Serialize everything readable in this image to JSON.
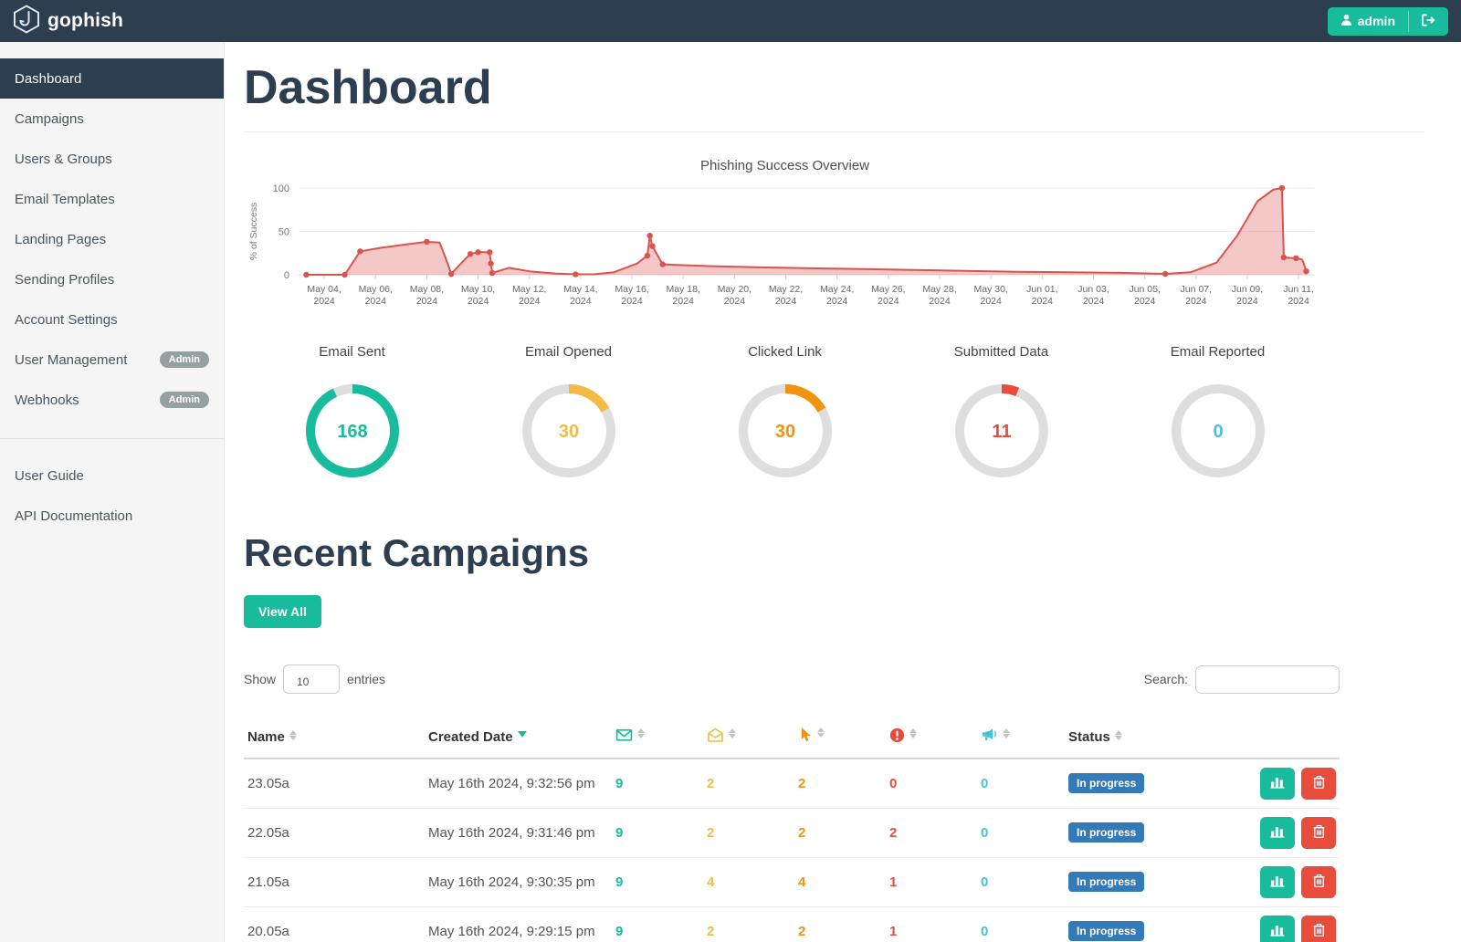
{
  "navbar": {
    "brand": "gophish",
    "user_label": "admin"
  },
  "sidebar": {
    "items": [
      {
        "label": "Dashboard",
        "active": true
      },
      {
        "label": "Campaigns"
      },
      {
        "label": "Users & Groups"
      },
      {
        "label": "Email Templates"
      },
      {
        "label": "Landing Pages"
      },
      {
        "label": "Sending Profiles"
      },
      {
        "label": "Account Settings"
      },
      {
        "label": "User Management",
        "badge": "Admin"
      },
      {
        "label": "Webhooks",
        "badge": "Admin"
      }
    ],
    "secondary_items": [
      {
        "label": "User Guide"
      },
      {
        "label": "API Documentation"
      }
    ]
  },
  "page": {
    "title": "Dashboard"
  },
  "chart_data": {
    "type": "area",
    "title": "Phishing Success Overview",
    "ylabel": "% of Success",
    "ylim": [
      0,
      100
    ],
    "yticks": [
      0,
      50,
      100
    ],
    "grid": "horizontal at 0/50/100",
    "legend_position": "none",
    "line_color": "#d9534f",
    "fill_color": "rgba(217,83,79,0.32)",
    "xlim_days": [
      0,
      39.6
    ],
    "xtick_days": [
      1,
      3,
      5,
      7,
      9,
      11,
      13,
      15,
      17,
      19,
      21,
      23,
      25,
      27,
      29,
      31,
      33,
      35,
      37,
      39
    ],
    "xtick_labels": [
      "May 04, 2024",
      "May 06, 2024",
      "May 08, 2024",
      "May 10, 2024",
      "May 12, 2024",
      "May 14, 2024",
      "May 16, 2024",
      "May 18, 2024",
      "May 20, 2024",
      "May 22, 2024",
      "May 24, 2024",
      "May 26, 2024",
      "May 28, 2024",
      "May 30, 2024",
      "Jun 01, 2024",
      "Jun 03, 2024",
      "Jun 05, 2024",
      "Jun 07, 2024",
      "Jun 09, 2024",
      "Jun 11, 2024"
    ],
    "points": [
      [
        0.3,
        0
      ],
      [
        1.8,
        0
      ],
      [
        2.4,
        27
      ],
      [
        3.2,
        31
      ],
      [
        4.2,
        35
      ],
      [
        5.0,
        38
      ],
      [
        5.5,
        37
      ],
      [
        5.75,
        18
      ],
      [
        5.95,
        1
      ],
      [
        6.3,
        12
      ],
      [
        6.7,
        24
      ],
      [
        7.0,
        26
      ],
      [
        7.45,
        26
      ],
      [
        7.5,
        13
      ],
      [
        7.55,
        2
      ],
      [
        8.2,
        8
      ],
      [
        9.0,
        4
      ],
      [
        10.0,
        1.5
      ],
      [
        10.8,
        0.5
      ],
      [
        11.5,
        0.5
      ],
      [
        12.3,
        3
      ],
      [
        13.2,
        13
      ],
      [
        13.6,
        22
      ],
      [
        13.7,
        45
      ],
      [
        13.8,
        33
      ],
      [
        14.2,
        12
      ],
      [
        15.0,
        11
      ],
      [
        16.0,
        10
      ],
      [
        18.0,
        8.5
      ],
      [
        20.0,
        7.5
      ],
      [
        22.0,
        6.5
      ],
      [
        24.0,
        5.5
      ],
      [
        26.0,
        4.5
      ],
      [
        28.0,
        3.5
      ],
      [
        30.0,
        2.8
      ],
      [
        32.0,
        2.2
      ],
      [
        33.8,
        1
      ],
      [
        34.8,
        3
      ],
      [
        35.8,
        14
      ],
      [
        36.6,
        45
      ],
      [
        37.4,
        85
      ],
      [
        38.0,
        98
      ],
      [
        38.35,
        100
      ],
      [
        38.42,
        20
      ],
      [
        38.9,
        19
      ],
      [
        39.1,
        18
      ],
      [
        39.15,
        17
      ],
      [
        39.3,
        4
      ]
    ],
    "markers": [
      [
        0.3,
        0
      ],
      [
        1.8,
        0
      ],
      [
        2.4,
        27
      ],
      [
        5.0,
        38
      ],
      [
        5.95,
        1
      ],
      [
        6.7,
        24
      ],
      [
        7.0,
        26
      ],
      [
        7.45,
        26
      ],
      [
        7.5,
        13
      ],
      [
        7.55,
        2
      ],
      [
        10.8,
        0.5
      ],
      [
        13.6,
        22
      ],
      [
        13.7,
        45
      ],
      [
        13.8,
        33
      ],
      [
        14.2,
        12
      ],
      [
        33.8,
        1
      ],
      [
        38.35,
        100
      ],
      [
        38.42,
        20
      ],
      [
        38.9,
        19
      ],
      [
        39.3,
        4
      ]
    ]
  },
  "stats": [
    {
      "label": "Email Sent",
      "value": "168",
      "color": "#18bc9c",
      "fraction": 0.93
    },
    {
      "label": "Email Opened",
      "value": "30",
      "color": "#f3bb45",
      "fraction": 0.167
    },
    {
      "label": "Clicked Link",
      "value": "30",
      "color": "#f0930f",
      "fraction": 0.167
    },
    {
      "label": "Submitted Data",
      "value": "11",
      "color": "#e74c3c",
      "fraction": 0.061
    },
    {
      "label": "Email Reported",
      "value": "0",
      "color": "#49c2d8",
      "fraction": 0
    }
  ],
  "recent": {
    "heading": "Recent Campaigns",
    "view_all_label": "View All",
    "show_label": "Show",
    "entries_value": "10",
    "entries_label": "entries",
    "search_label": "Search:"
  },
  "table": {
    "columns": [
      {
        "key": "name",
        "label": "Name",
        "type": "text"
      },
      {
        "key": "date",
        "label": "Created Date",
        "type": "text",
        "sorted": "desc"
      },
      {
        "key": "sent",
        "icon": "envelope-icon",
        "color": "#18bc9c"
      },
      {
        "key": "opened",
        "icon": "envelope-open-icon",
        "color": "#f3bb45"
      },
      {
        "key": "clicked",
        "icon": "cursor-icon",
        "color": "#f0930f"
      },
      {
        "key": "submitted",
        "icon": "exclamation-icon",
        "color": "#e74c3c"
      },
      {
        "key": "reported",
        "icon": "megaphone-icon",
        "color": "#49c2d8"
      },
      {
        "key": "status",
        "label": "Status"
      },
      {
        "key": "actions",
        "label": ""
      }
    ],
    "rows": [
      {
        "name": "23.05a",
        "date": "May 16th 2024, 9:32:56 pm",
        "sent": "9",
        "opened": "2",
        "clicked": "2",
        "submitted": "0",
        "reported": "0",
        "status": "In progress"
      },
      {
        "name": "22.05a",
        "date": "May 16th 2024, 9:31:46 pm",
        "sent": "9",
        "opened": "2",
        "clicked": "2",
        "submitted": "2",
        "reported": "0",
        "status": "In progress"
      },
      {
        "name": "21.05a",
        "date": "May 16th 2024, 9:30:35 pm",
        "sent": "9",
        "opened": "4",
        "clicked": "4",
        "submitted": "1",
        "reported": "0",
        "status": "In progress"
      },
      {
        "name": "20.05a",
        "date": "May 16th 2024, 9:29:15 pm",
        "sent": "9",
        "opened": "2",
        "clicked": "2",
        "submitted": "1",
        "reported": "0",
        "status": "In progress"
      }
    ]
  },
  "colors": {
    "navbar": "#2c3e50",
    "accent_green": "#18bc9c",
    "accent_red": "#e74c3c",
    "accent_yellow": "#f3bb45",
    "accent_orange": "#f0930f",
    "accent_cyan": "#49c2d8",
    "status_blue": "#337ab7"
  }
}
